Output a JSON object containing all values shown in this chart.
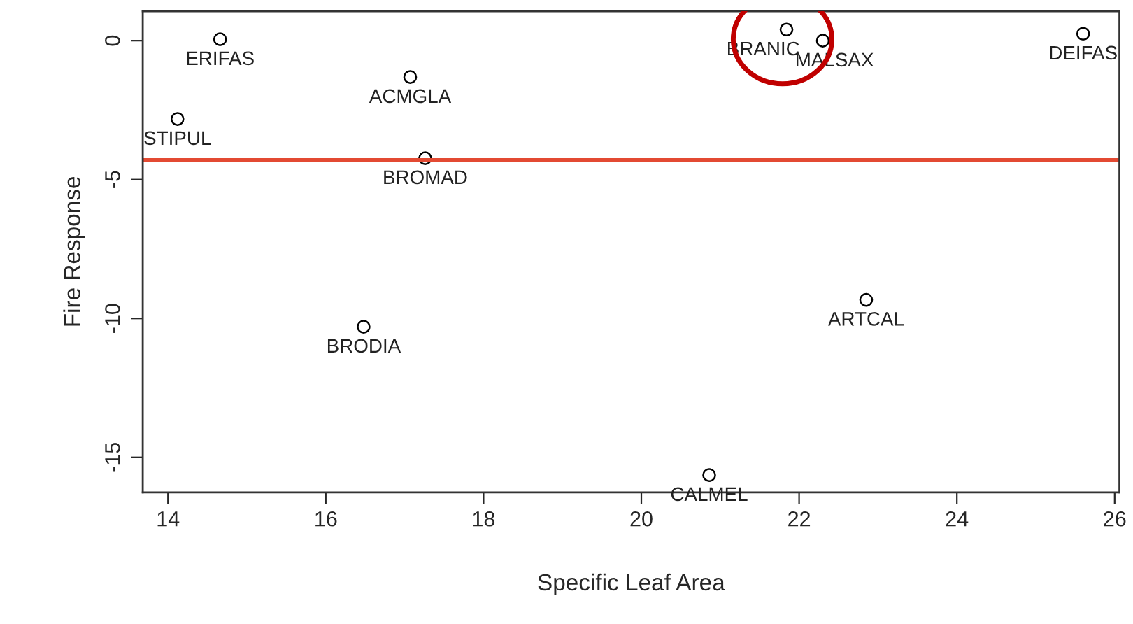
{
  "chart_data": {
    "type": "scatter",
    "xlabel": "Specific Leaf Area",
    "ylabel": "Fire Response",
    "x": [
      14.66,
      17.07,
      14.12,
      17.26,
      21.84,
      22.3,
      25.6,
      16.48,
      22.85,
      20.86
    ],
    "series": [
      {
        "color": "#000000",
        "values": [
          0.05,
          -1.31,
          -2.82,
          -4.23,
          0.4,
          0.0,
          0.25,
          -10.3,
          -9.33,
          -15.64
        ]
      }
    ],
    "marker": "circle",
    "xlim": [
      13.68,
      26.06
    ],
    "ylim": [
      -16.26,
      1.06
    ],
    "xticks": [
      14,
      16,
      18,
      20,
      22,
      24,
      26
    ],
    "yticks": [
      {
        "value": -15,
        "label": "-15"
      },
      {
        "value": -10,
        "label": "-10"
      },
      {
        "value": -5,
        "label": "-5"
      },
      0
    ],
    "grid": false,
    "ref_lines": [
      {
        "axis": "y",
        "value": -4.3,
        "color": "#e34a33"
      }
    ],
    "annotations": [
      {
        "text": "ERIFAS",
        "x": 14.66,
        "y": 0.05
      },
      {
        "text": "ACMGLA",
        "x": 17.07,
        "y": -1.31
      },
      {
        "text": "STIPUL",
        "x": 14.12,
        "y": -2.82
      },
      {
        "text": "BROMAD",
        "x": 17.26,
        "y": -4.23
      },
      {
        "text": "BRANIC",
        "x": 21.84,
        "y": 0.4
      },
      {
        "text": "MALSAX",
        "x": 22.3,
        "y": 0.0
      },
      {
        "text": "DEIFAS",
        "x": 25.6,
        "y": 0.25
      },
      {
        "text": "BRODIA",
        "x": 16.48,
        "y": -10.3
      },
      {
        "text": "ARTCAL",
        "x": 22.85,
        "y": -9.33
      },
      {
        "text": "CALMEL",
        "x": 20.86,
        "y": -15.64
      }
    ]
  }
}
